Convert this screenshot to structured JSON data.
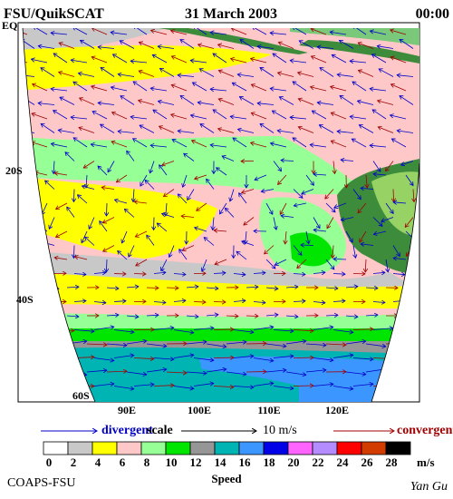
{
  "header": {
    "left": "FSU/QuikSCAT",
    "center": "31 March 2003",
    "right": "00:00"
  },
  "map": {
    "lat_labels": [
      "EQ",
      "20S",
      "40S",
      "60S"
    ],
    "lon_labels": [
      "90E",
      "100E",
      "110E",
      "120E"
    ]
  },
  "vector_legend": {
    "divergent": "divergent",
    "scale": "scale",
    "scale_value": "10 m/s",
    "convergent": "convergent"
  },
  "speed_legend": {
    "ticks": [
      0,
      2,
      4,
      6,
      8,
      10,
      12,
      14,
      16,
      18,
      20,
      22,
      24,
      26,
      28
    ],
    "unit": "m/s",
    "title": "Speed",
    "colors": [
      "#ffffff",
      "#c8c8c8",
      "#ffff00",
      "#ffc8c8",
      "#96ff96",
      "#00e600",
      "#969696",
      "#00b4b4",
      "#3c96ff",
      "#0000e6",
      "#ff64ff",
      "#b48cff",
      "#ff0000",
      "#d23c00",
      "#000000"
    ]
  },
  "footer": {
    "left": "COAPS-FSU",
    "right": "Yan Gu"
  }
}
